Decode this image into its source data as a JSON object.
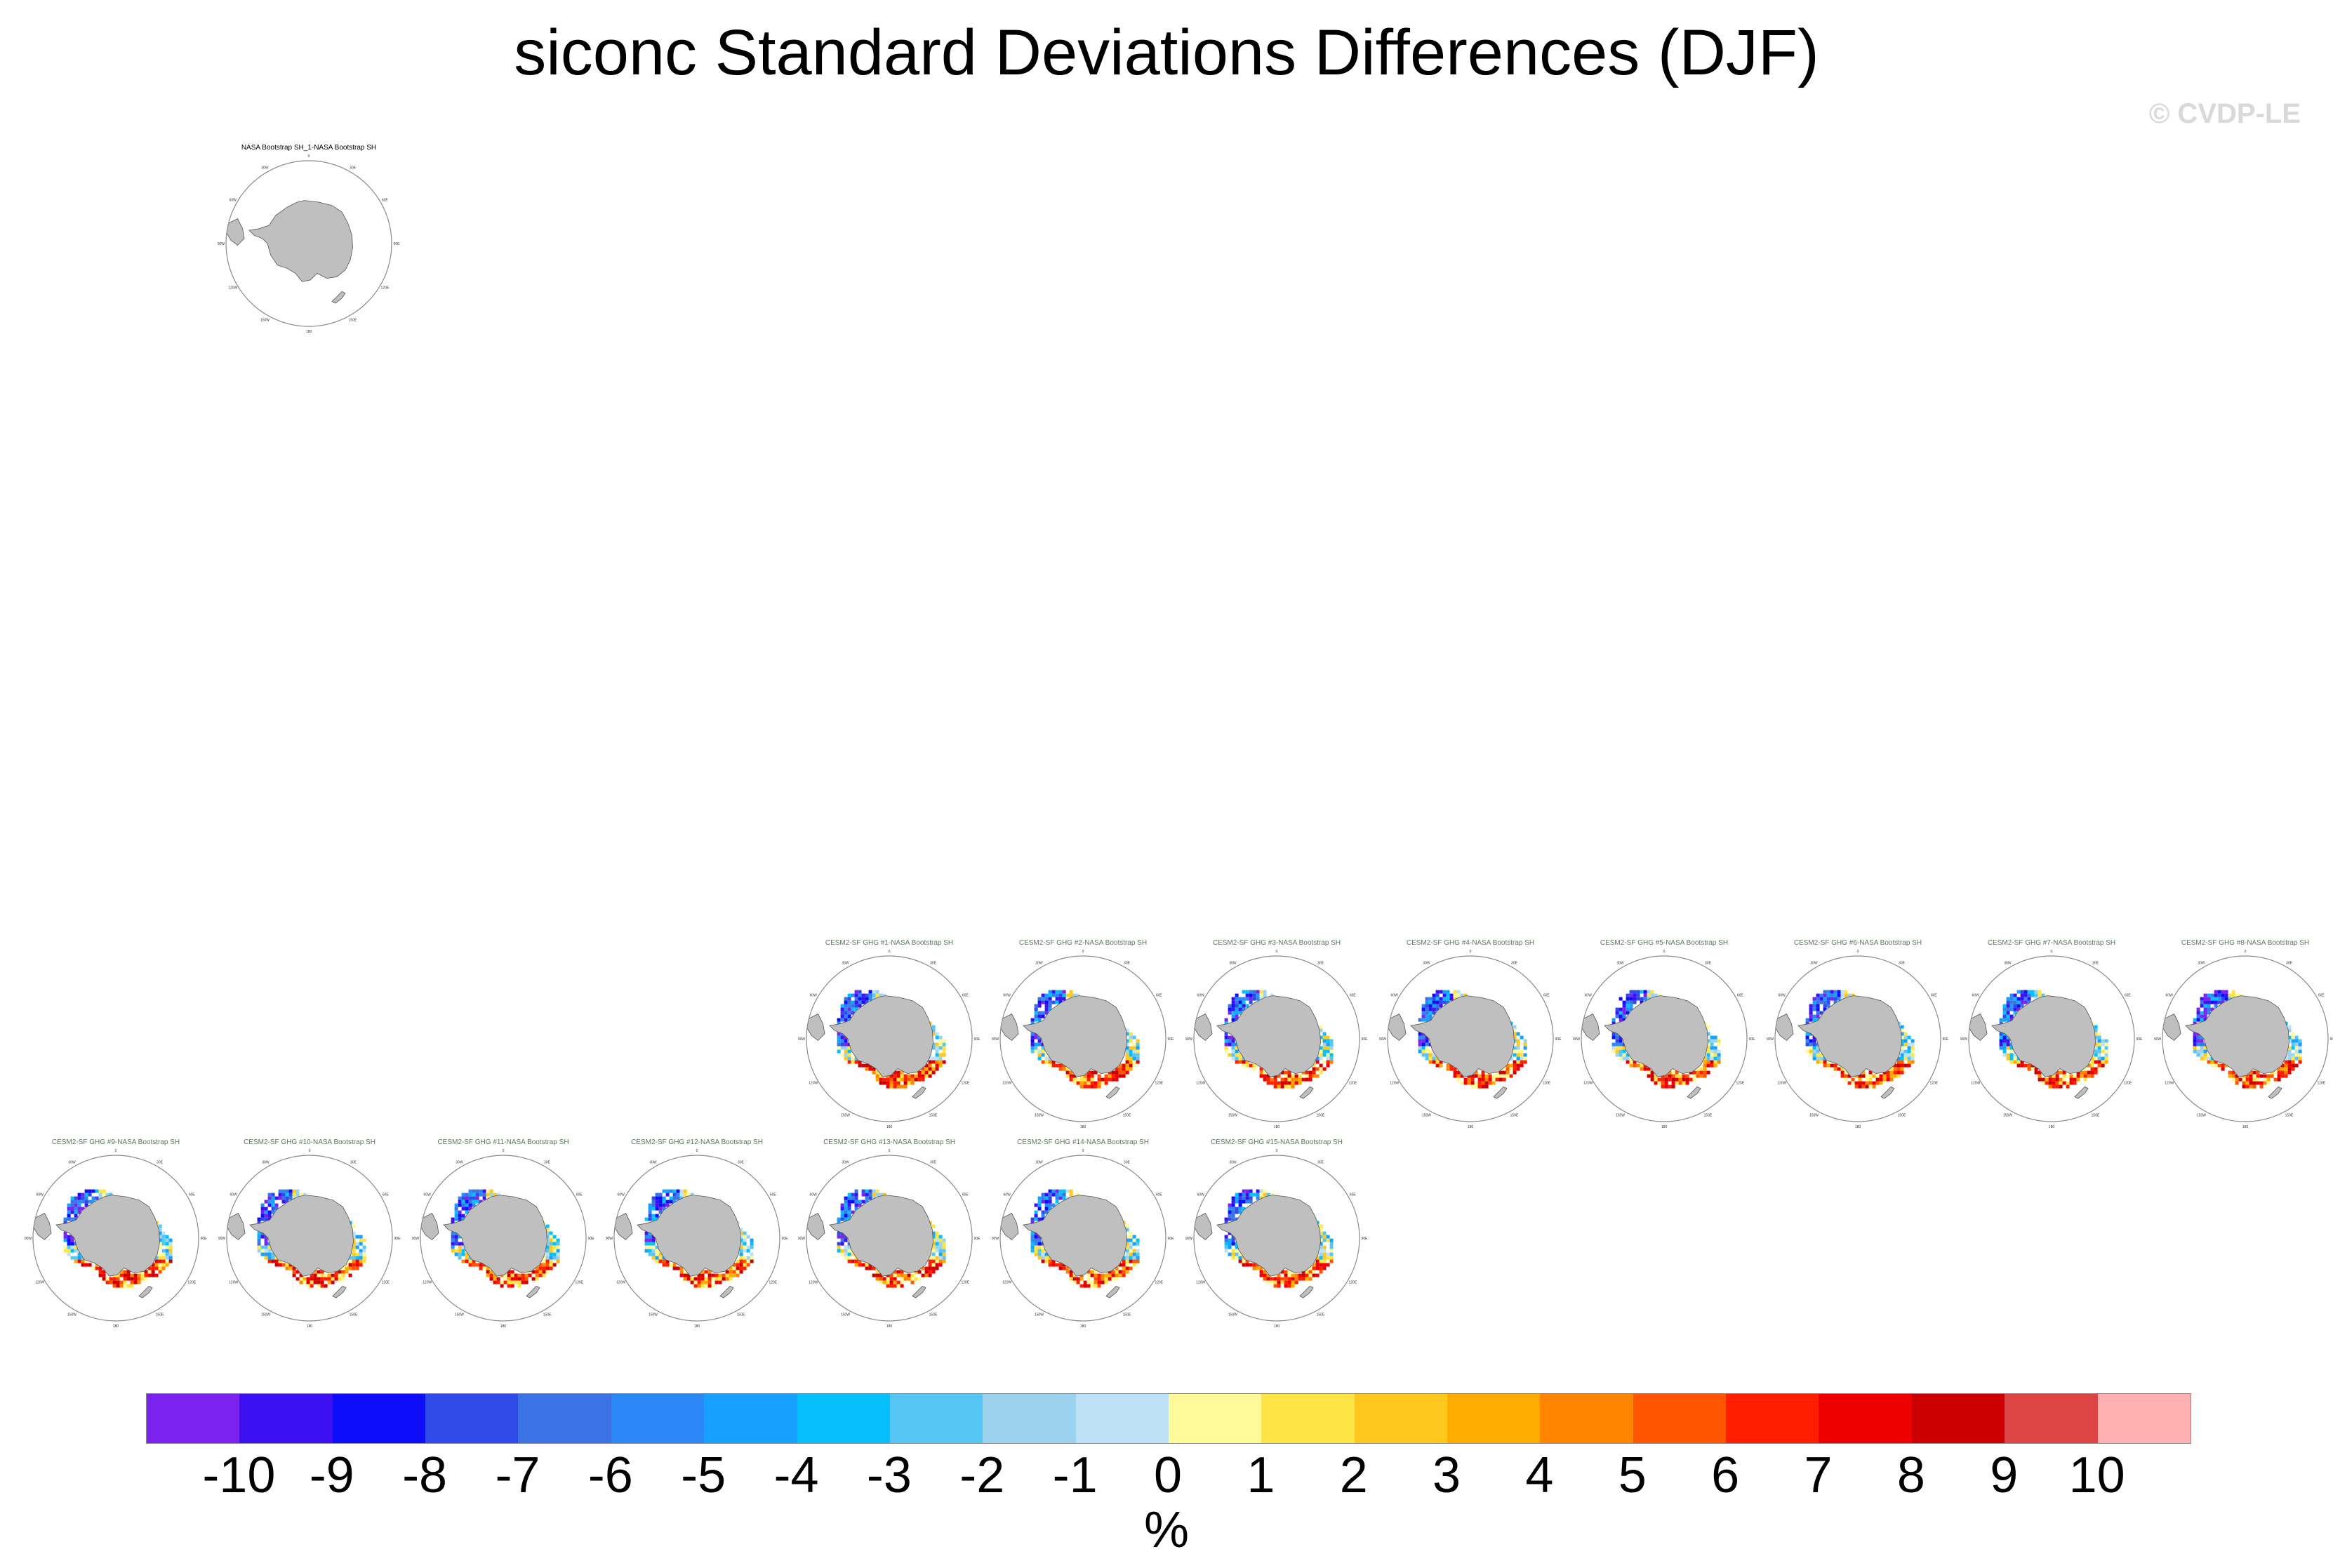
{
  "title": "siconc Standard Deviations Differences (DJF)",
  "watermark": "© CVDP-LE",
  "colors": {
    "land": "#bfbfbf",
    "land_edge": "#555555",
    "circle": "#8a8a8a"
  },
  "chart_data": {
    "type": "heatmap",
    "projection": "south-polar-stereographic",
    "title": "siconc Standard Deviations Differences (DJF)",
    "units": "%",
    "colorbar": {
      "labels": [
        "-10",
        "-9",
        "-8",
        "-7",
        "-6",
        "-5",
        "-4",
        "-3",
        "-2",
        "-1",
        "0",
        "1",
        "2",
        "3",
        "4",
        "5",
        "6",
        "7",
        "8",
        "9",
        "10"
      ],
      "colors": [
        "#7b22ee",
        "#3d10f2",
        "#0d0dfa",
        "#2f4ae6",
        "#3b72e6",
        "#2b87f5",
        "#17a1ff",
        "#05c0fc",
        "#56c6f5",
        "#9bd2ee",
        "#bde2f6",
        "#fff99a",
        "#ffe445",
        "#ffc81f",
        "#ffac00",
        "#ff8400",
        "#ff5500",
        "#ff1e00",
        "#ee0000",
        "#cc0000",
        "#dd4444",
        "#ffb0b0"
      ],
      "position": "bottom"
    },
    "panels": [
      {
        "title": "NASA Bootstrap SH_1-NASA Bootstrap SH",
        "kind": "reference"
      },
      {
        "title": "CESM2-SF GHG #1-NASA Bootstrap SH",
        "kind": "member"
      },
      {
        "title": "CESM2-SF GHG #2-NASA Bootstrap SH",
        "kind": "member"
      },
      {
        "title": "CESM2-SF GHG #3-NASA Bootstrap SH",
        "kind": "member"
      },
      {
        "title": "CESM2-SF GHG #4-NASA Bootstrap SH",
        "kind": "member"
      },
      {
        "title": "CESM2-SF GHG #5-NASA Bootstrap SH",
        "kind": "member"
      },
      {
        "title": "CESM2-SF GHG #6-NASA Bootstrap SH",
        "kind": "member"
      },
      {
        "title": "CESM2-SF GHG #7-NASA Bootstrap SH",
        "kind": "member"
      },
      {
        "title": "CESM2-SF GHG #8-NASA Bootstrap SH",
        "kind": "member"
      },
      {
        "title": "CESM2-SF GHG #9-NASA Bootstrap SH",
        "kind": "member"
      },
      {
        "title": "CESM2-SF GHG #10-NASA Bootstrap SH",
        "kind": "member"
      },
      {
        "title": "CESM2-SF GHG #11-NASA Bootstrap SH",
        "kind": "member"
      },
      {
        "title": "CESM2-SF GHG #12-NASA Bootstrap SH",
        "kind": "member"
      },
      {
        "title": "CESM2-SF GHG #13-NASA Bootstrap SH",
        "kind": "member"
      },
      {
        "title": "CESM2-SF GHG #14-NASA Bootstrap SH",
        "kind": "member"
      },
      {
        "title": "CESM2-SF GHG #15-NASA Bootstrap SH",
        "kind": "member"
      }
    ],
    "map_labels": [
      "0",
      "30E",
      "60E",
      "90E",
      "120E",
      "150E",
      "180",
      "150W",
      "120W",
      "90W",
      "60W",
      "30W"
    ]
  }
}
